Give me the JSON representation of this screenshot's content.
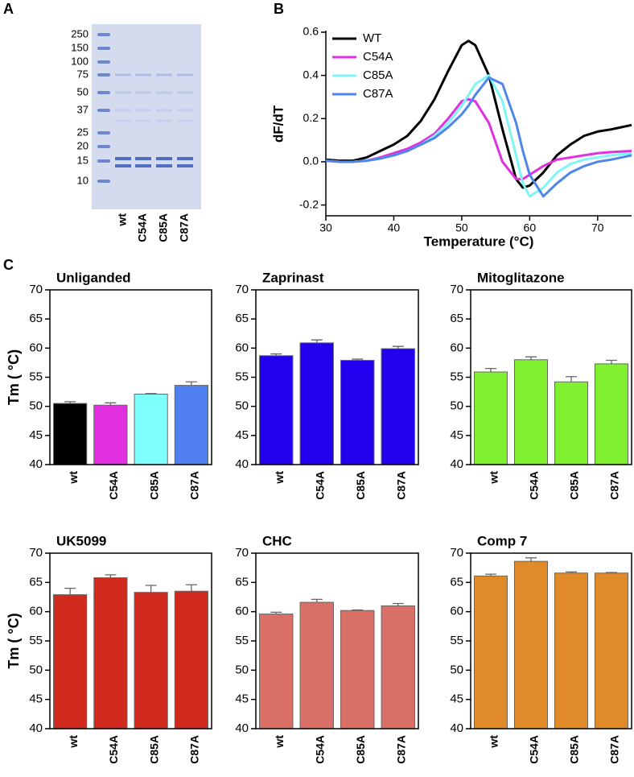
{
  "panel_labels": [
    "A",
    "B",
    "C"
  ],
  "gel": {
    "markers": [
      250,
      150,
      100,
      75,
      50,
      37,
      25,
      20,
      15,
      10
    ],
    "lanes": [
      "wt",
      "C54A",
      "C85A",
      "C87A"
    ]
  },
  "chart_data": [
    {
      "type": "line",
      "xlabel": "Temperature (°C)",
      "ylabel": "dF/dT",
      "x": [
        30,
        32,
        34,
        36,
        38,
        40,
        42,
        44,
        46,
        48,
        50,
        51,
        52,
        54,
        56,
        58,
        59,
        60,
        62,
        64,
        66,
        68,
        70,
        72,
        75
      ],
      "series": [
        {
          "name": "WT",
          "color": "#000000",
          "values": [
            0.01,
            0.005,
            0.005,
            0.02,
            0.05,
            0.08,
            0.12,
            0.19,
            0.29,
            0.42,
            0.54,
            0.56,
            0.54,
            0.4,
            0.15,
            -0.08,
            -0.12,
            -0.11,
            -0.05,
            0.03,
            0.08,
            0.12,
            0.14,
            0.15,
            0.17
          ]
        },
        {
          "name": "C54A",
          "color": "#e030e0",
          "values": [
            0.005,
            0.0,
            0.0,
            0.005,
            0.02,
            0.04,
            0.06,
            0.09,
            0.13,
            0.2,
            0.28,
            0.29,
            0.28,
            0.18,
            0.0,
            -0.08,
            -0.08,
            -0.06,
            -0.02,
            0.01,
            0.02,
            0.03,
            0.04,
            0.045,
            0.05
          ]
        },
        {
          "name": "C85A",
          "color": "#7ff5f5",
          "values": [
            0.005,
            0.0,
            0.0,
            0.005,
            0.015,
            0.03,
            0.05,
            0.08,
            0.12,
            0.18,
            0.26,
            0.31,
            0.36,
            0.4,
            0.28,
            0.03,
            -0.1,
            -0.16,
            -0.12,
            -0.05,
            -0.01,
            0.01,
            0.02,
            0.03,
            0.04
          ]
        },
        {
          "name": "C87A",
          "color": "#4f86e8",
          "values": [
            0.005,
            0.0,
            0.0,
            0.005,
            0.015,
            0.03,
            0.05,
            0.08,
            0.11,
            0.16,
            0.22,
            0.26,
            0.31,
            0.39,
            0.36,
            0.18,
            0.05,
            -0.06,
            -0.16,
            -0.1,
            -0.05,
            -0.02,
            0.0,
            0.01,
            0.03
          ]
        }
      ],
      "xlim": [
        30,
        75
      ],
      "xticks": [
        30,
        40,
        50,
        60,
        70
      ],
      "ylim": [
        -0.25,
        0.6
      ],
      "yticks": [
        -0.2,
        {
          "value": 0,
          "label": "0.0"
        },
        0.2,
        0.4,
        0.6
      ],
      "legend": "upper left"
    },
    {
      "type": "bar",
      "title": "Unliganded",
      "ylabel": "Tm ( °C)",
      "categories": [
        "wt",
        "C54A",
        "C85A",
        "C87A"
      ],
      "values": [
        50.5,
        50.2,
        52.1,
        53.6
      ],
      "errors": [
        0.3,
        0.4,
        0.1,
        0.6
      ],
      "color": [
        "#000000",
        "#e030e0",
        "#80ffff",
        "#4f7ff0"
      ],
      "ylim": [
        40,
        70
      ],
      "yticks": [
        40,
        45,
        50,
        55,
        60,
        65,
        70
      ]
    },
    {
      "type": "bar",
      "title": "Zaprinast",
      "categories": [
        "wt",
        "C54A",
        "C85A",
        "C87A"
      ],
      "values": [
        58.7,
        60.9,
        57.9,
        59.9
      ],
      "errors": [
        0.3,
        0.5,
        0.2,
        0.4
      ],
      "color": "#2200ee",
      "ylim": [
        40,
        70
      ],
      "yticks": [
        40,
        45,
        50,
        55,
        60,
        65,
        70
      ]
    },
    {
      "type": "bar",
      "title": "Mitoglitazone",
      "categories": [
        "wt",
        "C54A",
        "C85A",
        "C87A"
      ],
      "values": [
        55.9,
        58.0,
        54.2,
        57.3
      ],
      "errors": [
        0.6,
        0.5,
        0.9,
        0.6
      ],
      "color": "#80f030",
      "ylim": [
        40,
        70
      ],
      "yticks": [
        40,
        45,
        50,
        55,
        60,
        65,
        70
      ]
    },
    {
      "type": "bar",
      "title": "UK5099",
      "ylabel": "Tm ( °C)",
      "categories": [
        "wt",
        "C54A",
        "C85A",
        "C87A"
      ],
      "values": [
        62.9,
        65.8,
        63.3,
        63.5
      ],
      "errors": [
        1.1,
        0.5,
        1.2,
        1.1
      ],
      "color": "#d02a1e",
      "ylim": [
        40,
        70
      ],
      "yticks": [
        40,
        45,
        50,
        55,
        60,
        65,
        70
      ]
    },
    {
      "type": "bar",
      "title": "CHC",
      "categories": [
        "wt",
        "C54A",
        "C85A",
        "C87A"
      ],
      "values": [
        59.6,
        61.6,
        60.2,
        61.0
      ],
      "errors": [
        0.3,
        0.5,
        0.1,
        0.4
      ],
      "color": "#d87068",
      "ylim": [
        40,
        70
      ],
      "yticks": [
        40,
        45,
        50,
        55,
        60,
        65,
        70
      ]
    },
    {
      "type": "bar",
      "title": "Comp 7",
      "categories": [
        "wt",
        "C54A",
        "C85A",
        "C87A"
      ],
      "values": [
        66.1,
        68.6,
        66.6,
        66.6
      ],
      "errors": [
        0.3,
        0.6,
        0.2,
        0.1
      ],
      "color": "#e08a2a",
      "ylim": [
        40,
        70
      ],
      "yticks": [
        40,
        45,
        50,
        55,
        60,
        65,
        70
      ]
    }
  ]
}
